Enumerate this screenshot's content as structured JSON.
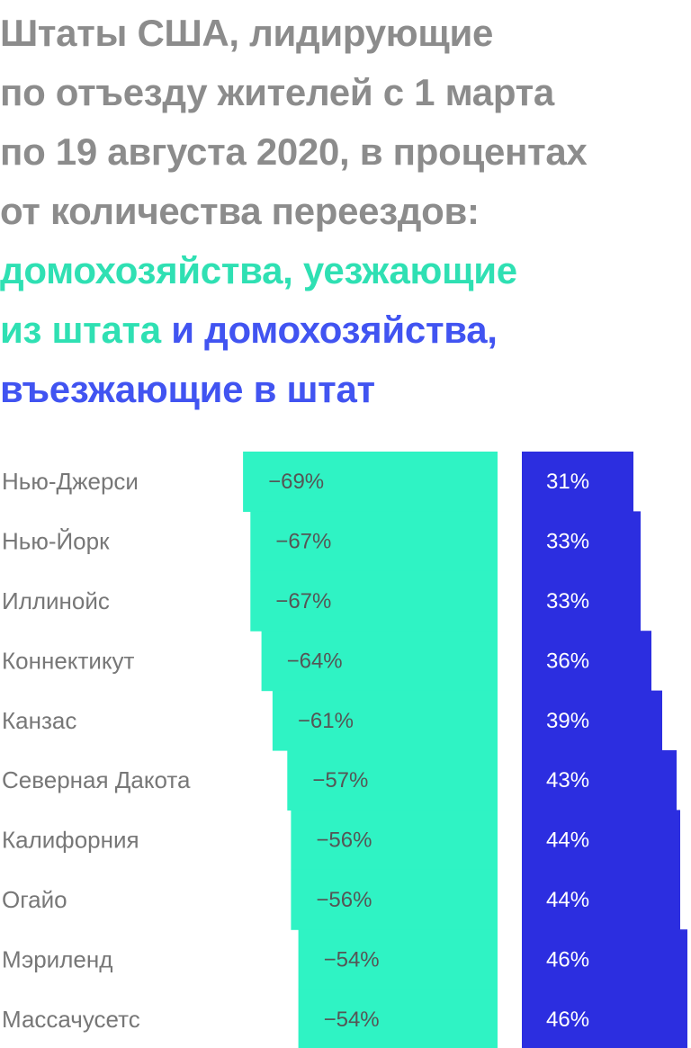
{
  "title": {
    "line1": "Штаты США, лидирующие",
    "line2": "по отъезду жителей с 1 марта",
    "line3": "по 19 августа 2020, в процентах",
    "line4": "от количества переездов:",
    "line5": "домохозяйства, уезжающие",
    "line6a": "из штата",
    "line6b": "и домохозяйства,",
    "line7": "въезжающие в штат"
  },
  "colors": {
    "outbound": "#2ff3c4",
    "inbound": "#2c2ee0",
    "title_gray": "#8c8c8c",
    "title_green": "#2fe0b3",
    "title_blue": "#4154f1"
  },
  "chart_data": {
    "type": "bar",
    "categories": [
      "Нью-Джерси",
      "Нью-Йорк",
      "Иллинойс",
      "Коннектикут",
      "Канзас",
      "Северная Дакота",
      "Калифорния",
      "Огайо",
      "Мэриленд",
      "Массачусетс"
    ],
    "series": [
      {
        "name": "домохозяйства, уезжающие из штата",
        "values": [
          -69,
          -67,
          -67,
          -64,
          -61,
          -57,
          -56,
          -56,
          -54,
          -54
        ],
        "labels": [
          "−69%",
          "−67%",
          "−67%",
          "−64%",
          "−61%",
          "−57%",
          "−56%",
          "−56%",
          "−54%",
          "−54%"
        ]
      },
      {
        "name": "домохозяйства, въезжающие в штат",
        "values": [
          31,
          33,
          33,
          36,
          39,
          43,
          44,
          44,
          46,
          46
        ],
        "labels": [
          "31%",
          "33%",
          "33%",
          "36%",
          "39%",
          "43%",
          "44%",
          "44%",
          "46%",
          "46%"
        ]
      }
    ]
  }
}
